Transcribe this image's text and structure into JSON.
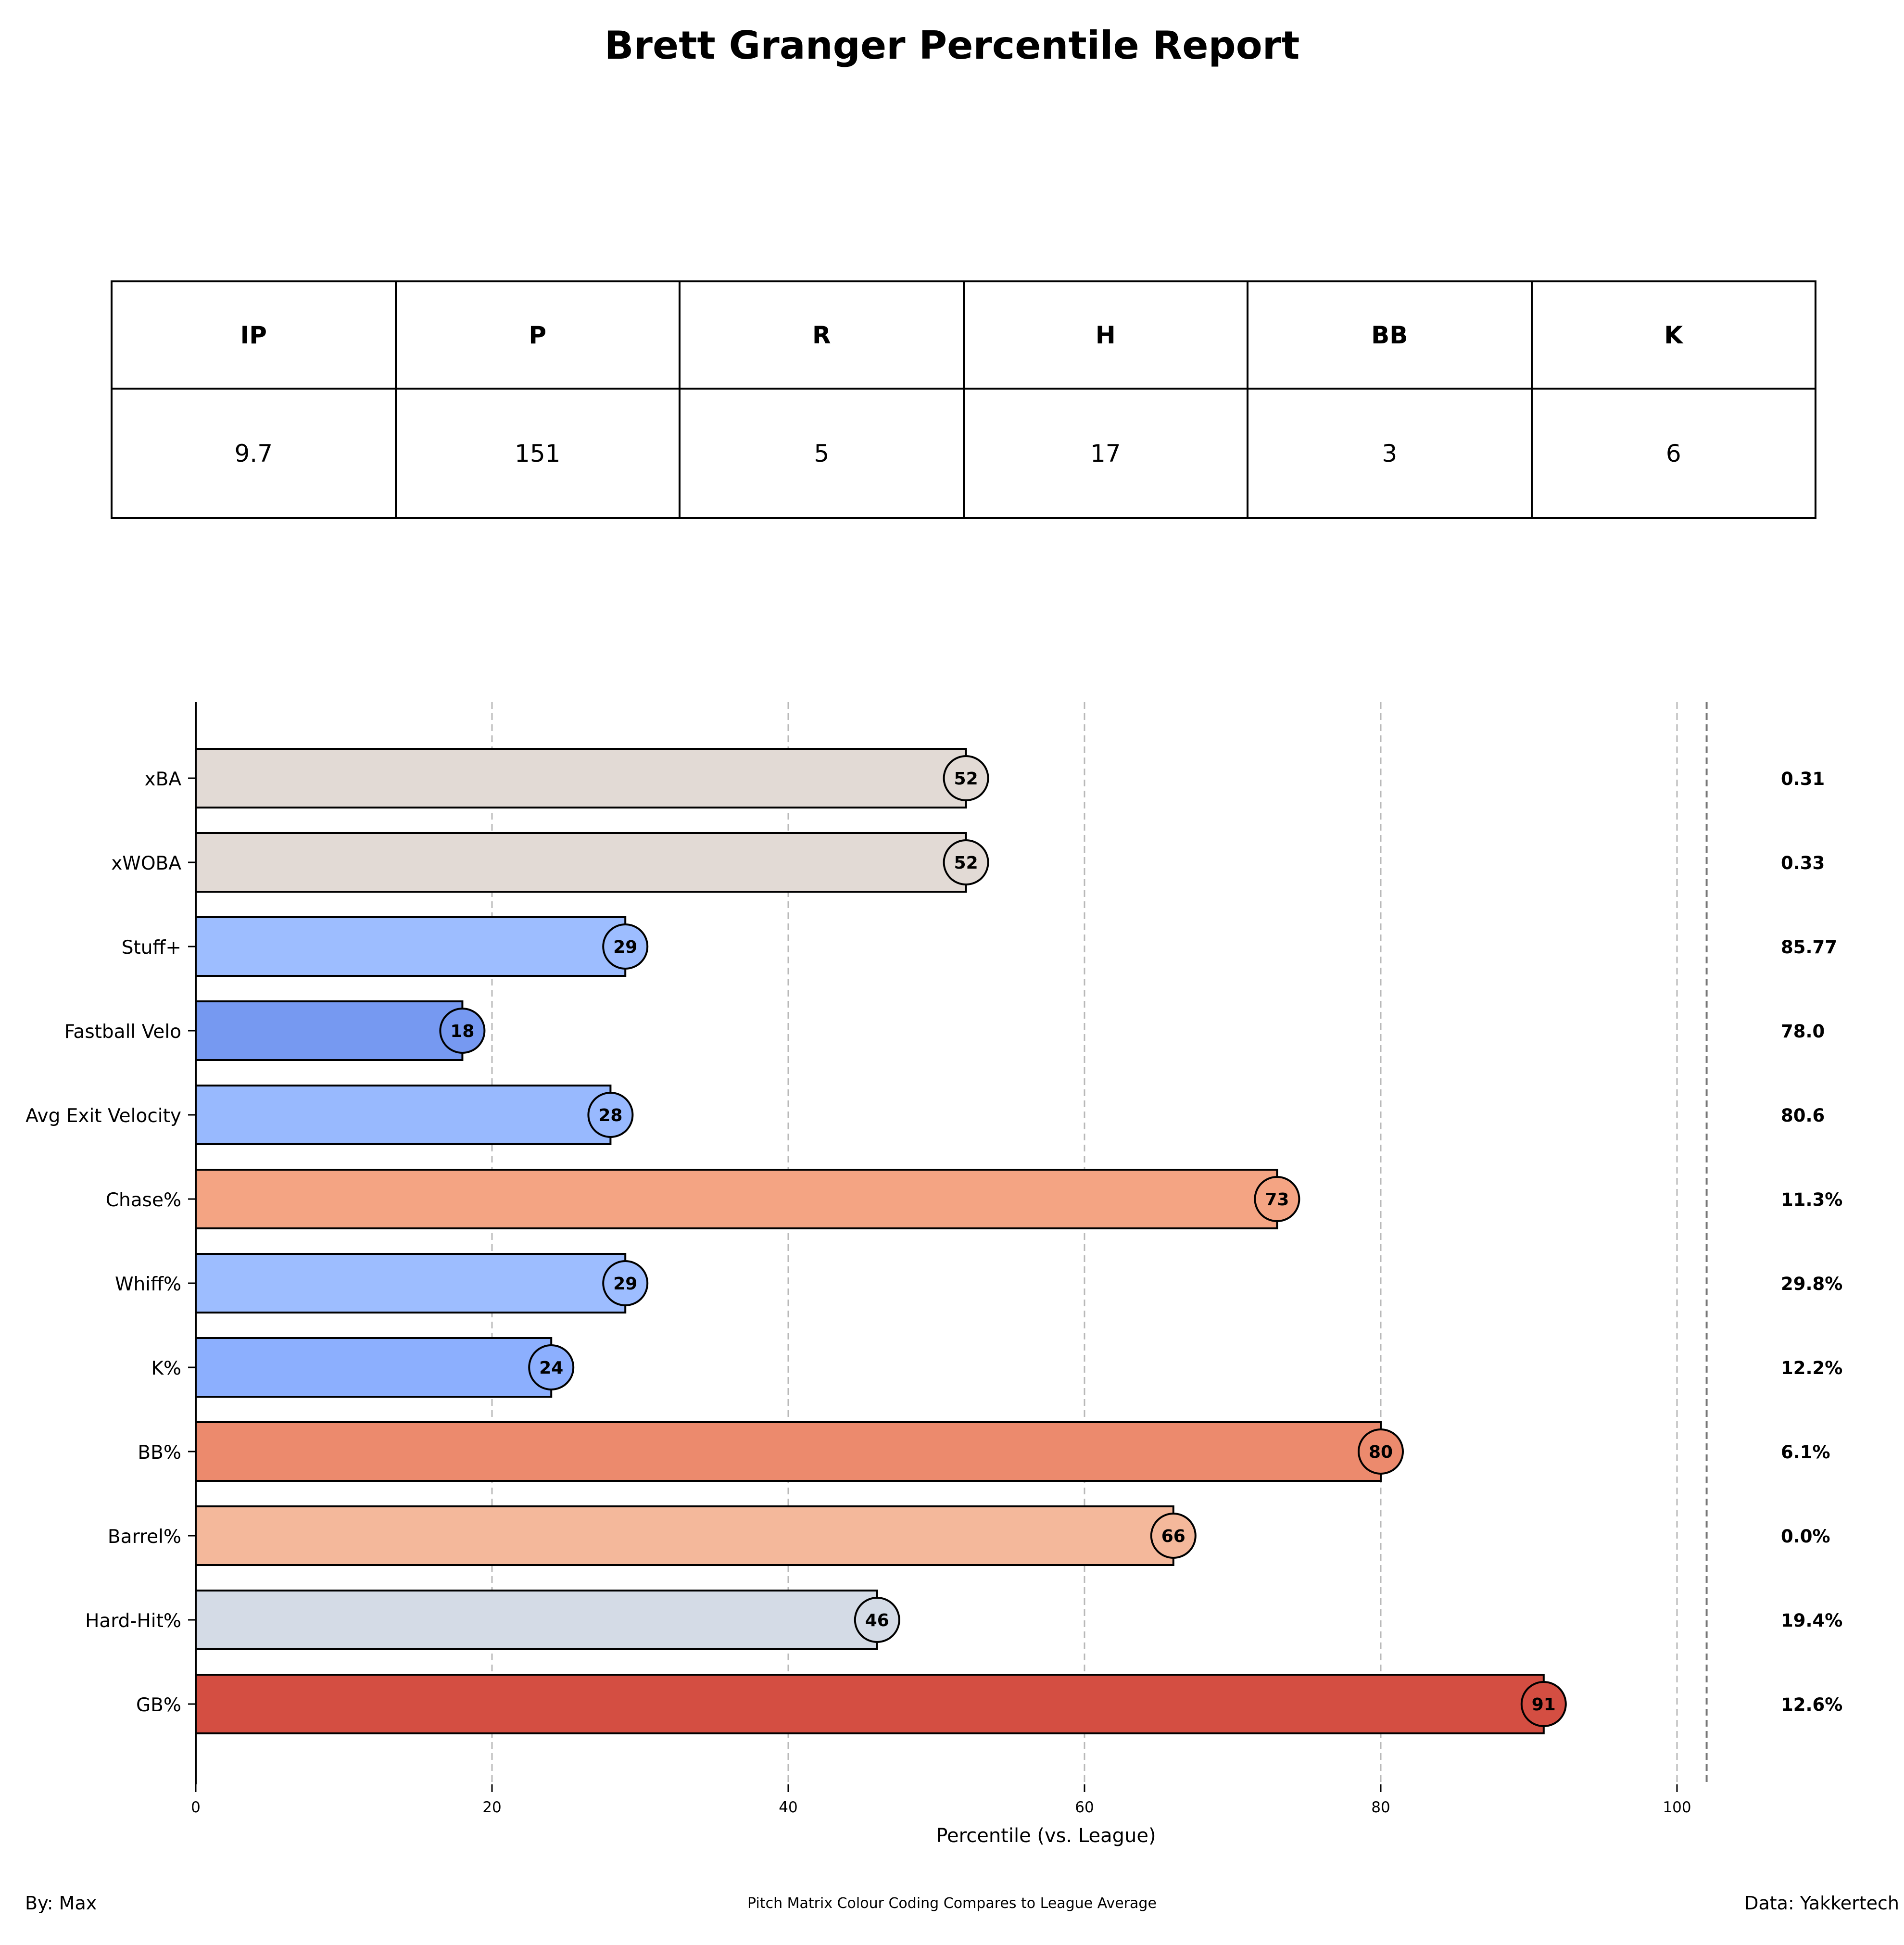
{
  "title": "Brett Granger Percentile Report",
  "stats_table": {
    "headers": [
      "IP",
      "P",
      "R",
      "H",
      "BB",
      "K"
    ],
    "values": [
      "9.7",
      "151",
      "5",
      "17",
      "3",
      "6"
    ]
  },
  "chart_data": {
    "type": "bar",
    "orientation": "horizontal",
    "xlabel": "Percentile (vs. League)",
    "ylabel": "",
    "xlim": [
      0,
      102
    ],
    "xticks": [
      0,
      20,
      40,
      60,
      80,
      100
    ],
    "grid": "vertical dashed",
    "categories": [
      "xBA",
      "xWOBA",
      "Stuff+",
      "Fastball Velo",
      "Avg Exit Velocity",
      "Chase%",
      "Whiff%",
      "K%",
      "BB%",
      "Barrel%",
      "Hard-Hit%",
      "GB%"
    ],
    "percentiles": [
      52,
      52,
      29,
      18,
      28,
      73,
      29,
      24,
      80,
      66,
      46,
      91
    ],
    "raw_values": [
      "0.31",
      "0.33",
      "85.77",
      "78.0",
      "80.6",
      "11.3%",
      "29.8%",
      "12.2%",
      "6.1%",
      "0.0%",
      "19.4%",
      "12.6%"
    ],
    "colors": [
      "#e2dad5",
      "#e2dad5",
      "#9dbdff",
      "#7699f1",
      "#98b9fe",
      "#f4a483",
      "#9dbdff",
      "#8caffe",
      "#ec8a6d",
      "#f4b89b",
      "#d4dbe6",
      "#d44e42"
    ]
  },
  "footer": {
    "left": "By: Max",
    "center": "Pitch Matrix Colour Coding Compares to League Average",
    "right": "Data: Yakkertech"
  }
}
